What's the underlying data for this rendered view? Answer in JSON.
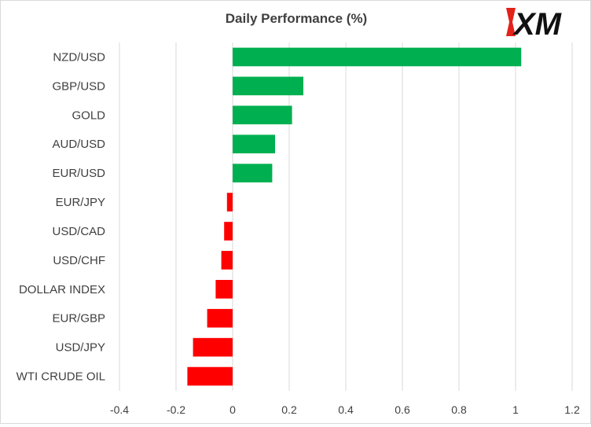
{
  "logo": {
    "text": "XM",
    "colors": {
      "accent": "#e2231a",
      "text": "#111111"
    }
  },
  "chart_data": {
    "type": "bar",
    "orientation": "horizontal",
    "title": "Daily Performance (%)",
    "xlabel": "",
    "ylabel": "",
    "xlim": [
      -0.4,
      1.2
    ],
    "xticks": [
      -0.4,
      -0.2,
      0,
      0.2,
      0.4,
      0.6,
      0.8,
      1,
      1.2
    ],
    "xtick_labels": [
      "-0.4",
      "-0.2",
      "0",
      "0.2",
      "0.4",
      "0.6",
      "0.8",
      "1",
      "1.2"
    ],
    "grid": {
      "vertical": true,
      "horizontal": false
    },
    "legend": "none",
    "colors": {
      "positive": "#00b050",
      "negative": "#ff0000",
      "grid": "#d9d9d9"
    },
    "categories": [
      "NZD/USD",
      "GBP/USD",
      "GOLD",
      "AUD/USD",
      "EUR/USD",
      "EUR/JPY",
      "USD/CAD",
      "USD/CHF",
      "DOLLAR INDEX",
      "EUR/GBP",
      "USD/JPY",
      "WTI CRUDE OIL"
    ],
    "values": [
      1.02,
      0.25,
      0.21,
      0.15,
      0.14,
      -0.02,
      -0.03,
      -0.04,
      -0.06,
      -0.09,
      -0.14,
      -0.16
    ]
  }
}
